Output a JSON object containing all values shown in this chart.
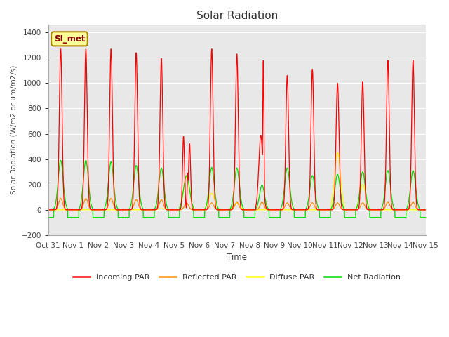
{
  "title": "Solar Radiation",
  "ylabel": "Solar Radiation (W/m2 or um/m2/s)",
  "xlabel": "Time",
  "ylim": [
    -200,
    1460
  ],
  "yticks": [
    -200,
    0,
    200,
    400,
    600,
    800,
    1000,
    1200,
    1400
  ],
  "plot_bg": "#e8e8e8",
  "fig_bg": "#ffffff",
  "annotation_text": "SI_met",
  "annotation_bg": "#ffff99",
  "annotation_border": "#aa8800",
  "colors": {
    "incoming": "#ff0000",
    "reflected": "#ff8c00",
    "diffuse": "#ffff00",
    "net": "#00dd00"
  },
  "legend_labels": [
    "Incoming PAR",
    "Reflected PAR",
    "Diffuse PAR",
    "Net Radiation"
  ],
  "x_tick_labels": [
    "Oct 31",
    "Nov 1",
    "Nov 2",
    "Nov 3",
    "Nov 4",
    "Nov 5",
    "Nov 6",
    "Nov 7",
    "Nov 8",
    "Nov 9",
    "Nov 10",
    "Nov 11",
    "Nov 12",
    "Nov 13",
    "Nov 14",
    "Nov 15"
  ],
  "num_days": 15
}
